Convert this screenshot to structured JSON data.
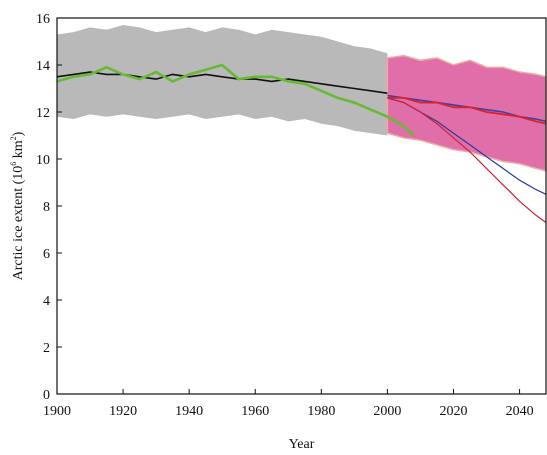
{
  "chart_data": {
    "type": "line",
    "title": "",
    "xlabel": "Year",
    "ylabel_main": "Arctic ice extent (10",
    "ylabel_exp1": "6",
    "ylabel_mid": " km",
    "ylabel_exp2": "2",
    "ylabel_end": ")",
    "xlim": [
      1900,
      2048
    ],
    "ylim": [
      0,
      16
    ],
    "x_ticks": [
      1900,
      1920,
      1940,
      1960,
      1980,
      2000,
      2020,
      2040
    ],
    "y_ticks": [
      0,
      2,
      4,
      6,
      8,
      10,
      12,
      14,
      16
    ],
    "grid": false,
    "colors": {
      "hist_band": "#b9b9b9",
      "future_band": "#d9559a",
      "future_band_edge": "#f0a8a0",
      "black": "#111111",
      "green": "#66bb33",
      "red": "#e0202a",
      "blue": "#3344aa",
      "red_thin": "#cc2233",
      "blue_thin": "#2a3aa0"
    },
    "bands": [
      {
        "key": "historical",
        "x": [
          1900,
          1905,
          1910,
          1915,
          1920,
          1925,
          1930,
          1935,
          1940,
          1945,
          1950,
          1955,
          1960,
          1965,
          1970,
          1975,
          1980,
          1985,
          1990,
          1995,
          2000
        ],
        "upper": [
          15.3,
          15.4,
          15.6,
          15.5,
          15.7,
          15.6,
          15.4,
          15.5,
          15.6,
          15.4,
          15.6,
          15.5,
          15.3,
          15.5,
          15.4,
          15.3,
          15.2,
          15.0,
          14.8,
          14.7,
          14.5
        ],
        "lower": [
          11.8,
          11.7,
          11.9,
          11.8,
          11.9,
          11.8,
          11.7,
          11.8,
          11.9,
          11.7,
          11.8,
          11.9,
          11.7,
          11.8,
          11.6,
          11.7,
          11.5,
          11.4,
          11.2,
          11.1,
          11.0
        ]
      },
      {
        "key": "future",
        "x": [
          2000,
          2005,
          2010,
          2015,
          2020,
          2025,
          2030,
          2035,
          2040,
          2045,
          2048
        ],
        "upper": [
          14.3,
          14.4,
          14.2,
          14.3,
          14.0,
          14.2,
          13.9,
          13.9,
          13.7,
          13.6,
          13.5
        ],
        "lower": [
          11.1,
          10.9,
          10.8,
          10.6,
          10.4,
          10.3,
          10.1,
          9.9,
          9.8,
          9.6,
          9.5
        ]
      }
    ],
    "series": [
      {
        "key": "black",
        "x": [
          1900,
          1905,
          1910,
          1915,
          1920,
          1925,
          1930,
          1935,
          1940,
          1945,
          1950,
          1955,
          1960,
          1965,
          1970,
          1975,
          1980,
          1985,
          1990,
          1995,
          2000
        ],
        "values": [
          13.5,
          13.6,
          13.7,
          13.6,
          13.6,
          13.5,
          13.4,
          13.6,
          13.5,
          13.6,
          13.5,
          13.4,
          13.4,
          13.3,
          13.4,
          13.3,
          13.2,
          13.1,
          13.0,
          12.9,
          12.8
        ]
      },
      {
        "key": "green",
        "x": [
          1900,
          1905,
          1910,
          1915,
          1920,
          1925,
          1930,
          1935,
          1940,
          1945,
          1950,
          1955,
          1960,
          1965,
          1970,
          1975,
          1980,
          1985,
          1990,
          1995,
          2000,
          2005,
          2008
        ],
        "values": [
          13.3,
          13.5,
          13.6,
          13.9,
          13.6,
          13.4,
          13.7,
          13.3,
          13.6,
          13.8,
          14.0,
          13.4,
          13.5,
          13.5,
          13.3,
          13.2,
          12.9,
          12.6,
          12.4,
          12.1,
          11.8,
          11.4,
          11.0
        ]
      },
      {
        "key": "blue",
        "x": [
          2000,
          2005,
          2010,
          2015,
          2020,
          2025,
          2030,
          2035,
          2040,
          2045,
          2048
        ],
        "values": [
          12.7,
          12.6,
          12.5,
          12.4,
          12.3,
          12.2,
          12.1,
          12.0,
          11.8,
          11.7,
          11.6
        ]
      },
      {
        "key": "red",
        "x": [
          2000,
          2005,
          2010,
          2015,
          2020,
          2025,
          2030,
          2035,
          2040,
          2045,
          2048
        ],
        "values": [
          12.6,
          12.6,
          12.4,
          12.4,
          12.2,
          12.2,
          12.0,
          11.9,
          11.8,
          11.6,
          11.5
        ]
      },
      {
        "key": "blue_thin",
        "x": [
          2000,
          2005,
          2010,
          2015,
          2020,
          2025,
          2030,
          2035,
          2040,
          2045,
          2048
        ],
        "values": [
          12.6,
          12.4,
          12.0,
          11.6,
          11.1,
          10.6,
          10.1,
          9.6,
          9.1,
          8.7,
          8.5
        ]
      },
      {
        "key": "red_thin",
        "x": [
          2000,
          2005,
          2010,
          2015,
          2020,
          2025,
          2030,
          2035,
          2040,
          2045,
          2048
        ],
        "values": [
          12.6,
          12.4,
          12.0,
          11.5,
          10.9,
          10.3,
          9.6,
          8.9,
          8.2,
          7.6,
          7.3
        ]
      }
    ]
  }
}
